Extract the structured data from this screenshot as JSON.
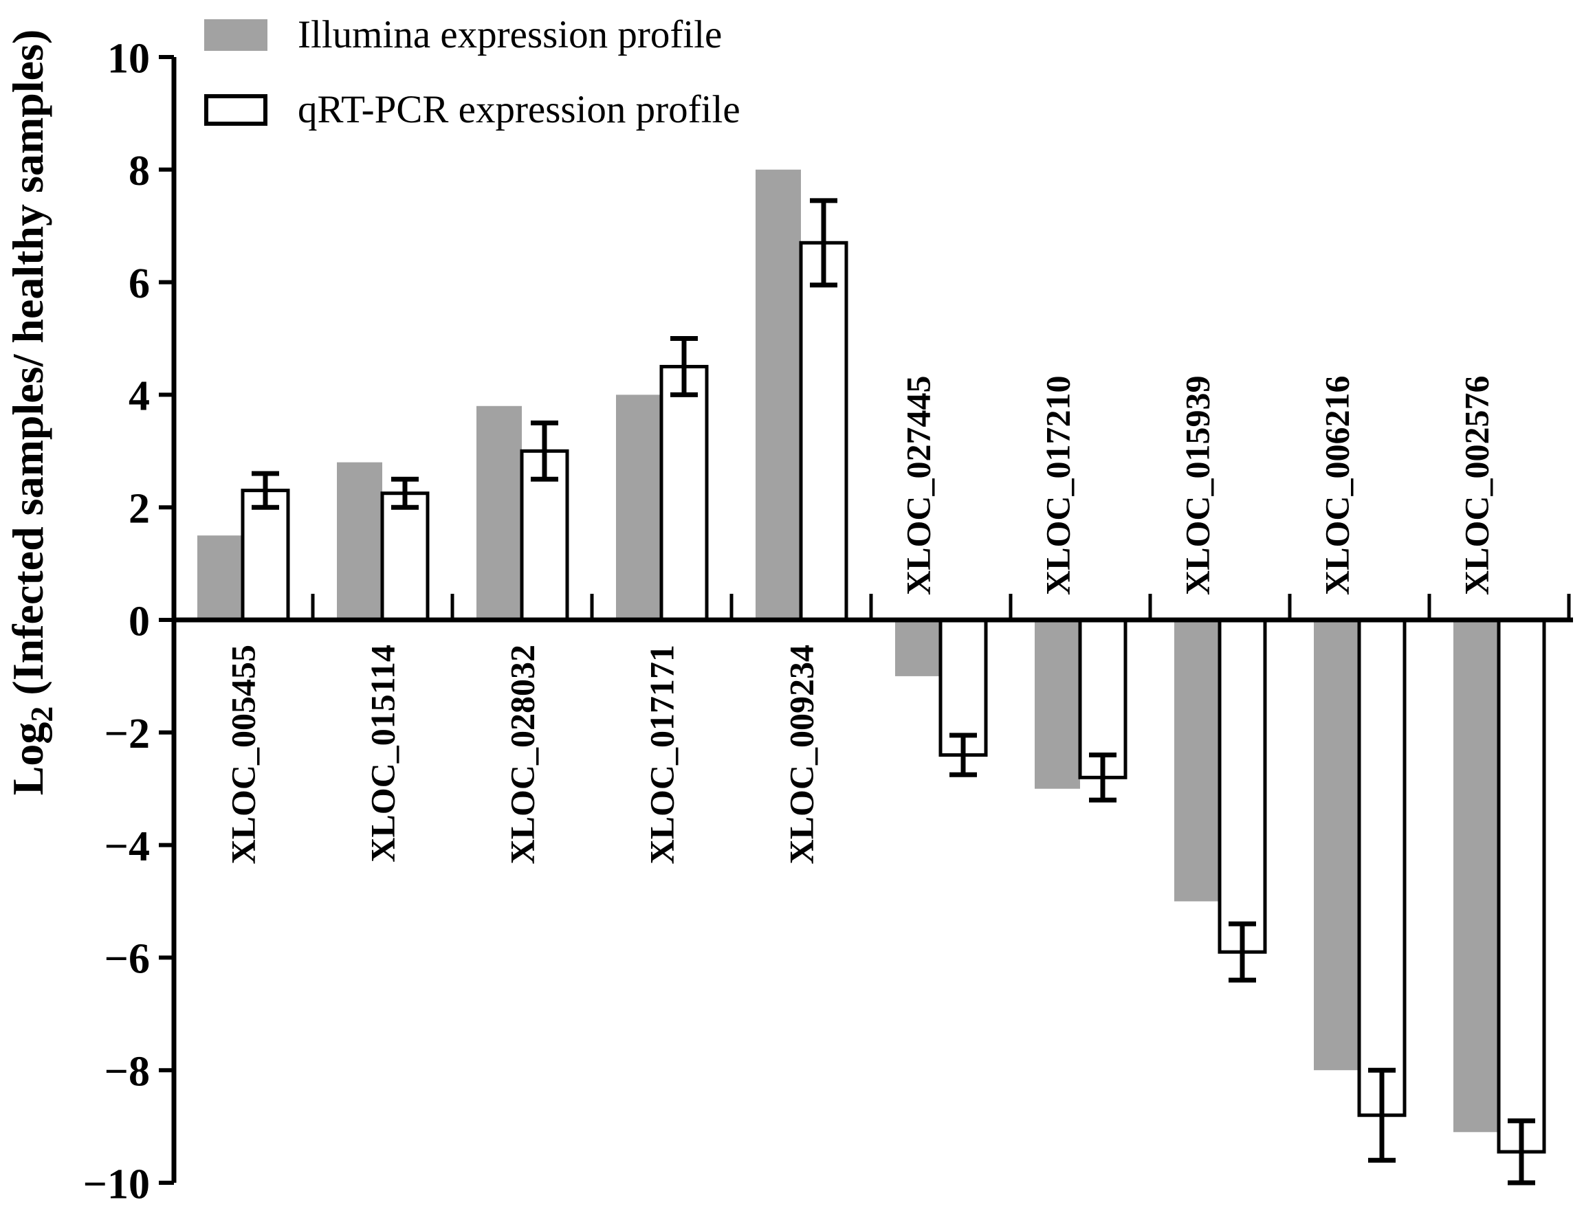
{
  "figure": {
    "legend": [
      {
        "swatch": "gray-filled",
        "label": "Illumina expression profile"
      },
      {
        "swatch": "white-outlined",
        "label": "qRT-PCR expression profile"
      }
    ]
  },
  "chart_data": {
    "type": "bar",
    "title": "",
    "categories": [
      "XLOC_005455",
      "XLOC_015114",
      "XLOC_028032",
      "XLOC_017171",
      "XLOC_009234",
      "XLOC_027445",
      "XLOC_017210",
      "XLOC_015939",
      "XLOC_006216",
      "XLOC_002576"
    ],
    "series": [
      {
        "name": "Illumina expression profile",
        "fill": "#a2a2a2",
        "outline": "none",
        "values": [
          1.5,
          2.8,
          3.8,
          4.0,
          8.0,
          -1.0,
          -3.0,
          -5.0,
          -8.0,
          -9.1
        ]
      },
      {
        "name": "qRT-PCR expression profile",
        "fill": "#ffffff",
        "outline": "#000000",
        "values": [
          2.3,
          2.25,
          3.0,
          4.5,
          6.7,
          -2.4,
          -2.8,
          -5.9,
          -8.8,
          -9.45
        ],
        "errors": [
          0.3,
          0.25,
          0.5,
          0.5,
          0.75,
          0.35,
          0.4,
          0.5,
          0.8,
          0.55
        ]
      }
    ],
    "ylabel": "Log2 (Infected samples/ healthy samples)",
    "ylabel_parts": {
      "main": "Log",
      "sub": "2",
      "rest": " (Infected samples/ healthy samples)"
    },
    "xlabel": "",
    "ylim": [
      -10,
      10
    ],
    "yticks": [
      10,
      8,
      6,
      4,
      2,
      0,
      -2,
      -4,
      -6,
      -8,
      -10
    ],
    "ytick_labels": [
      "10",
      "8",
      "6",
      "4",
      "2",
      "0",
      "−2",
      "−4",
      "−6",
      "−8",
      "−10"
    ],
    "grid": false,
    "legend_position": "top-left",
    "error_bar_color": "#000000",
    "axis_color": "#000000",
    "label_orientation": "vertical",
    "positive_labels_below_axis": true,
    "negative_labels_above_axis": true
  }
}
